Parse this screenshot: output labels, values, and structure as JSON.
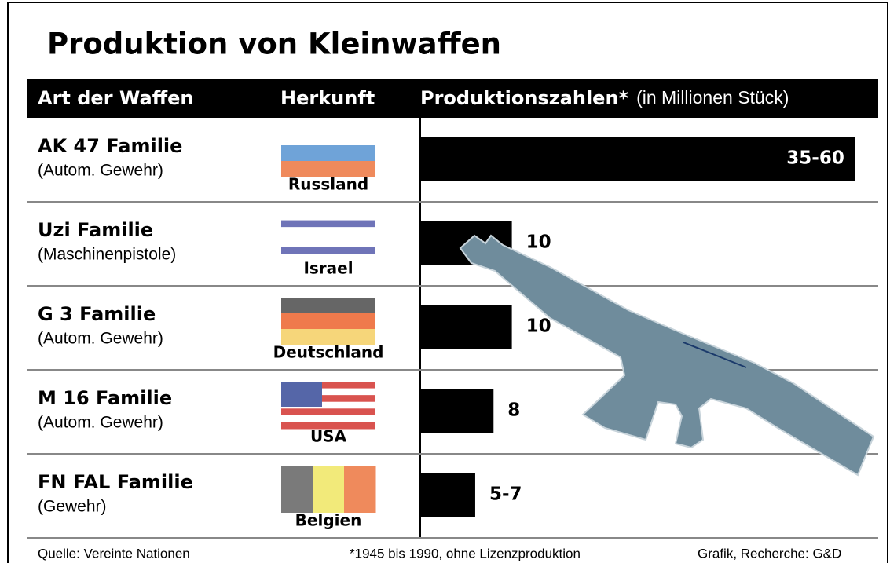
{
  "chart_data": {
    "type": "bar",
    "title": "Produktion von Kleinwaffen",
    "column_headers": [
      "Art der Waffen",
      "Herkunft",
      "Produktionszahlen*",
      "(in Millionen Stück)"
    ],
    "categories": [
      "AK 47 Familie",
      "Uzi Familie",
      "G 3 Familie",
      "M 16 Familie",
      "FN FAL Familie"
    ],
    "subtitles": [
      "(Autom. Gewehr)",
      "(Maschinenpistole)",
      "(Autom. Gewehr)",
      "(Autom. Gewehr)",
      "(Gewehr)"
    ],
    "origins": [
      "Russland",
      "Israel",
      "Deutschland",
      "USA",
      "Belgien"
    ],
    "values": [
      47.5,
      10,
      10,
      8,
      6
    ],
    "value_labels": [
      "35-60",
      "10",
      "10",
      "8",
      "5-7"
    ],
    "color": "#000000",
    "xlim": [
      0,
      50
    ],
    "footnotes": [
      "Quelle: Vereinte Nationen",
      "*1945 bis 1990, ohne Lizenzproduktion",
      "Grafik, Recherche: G&D"
    ]
  }
}
